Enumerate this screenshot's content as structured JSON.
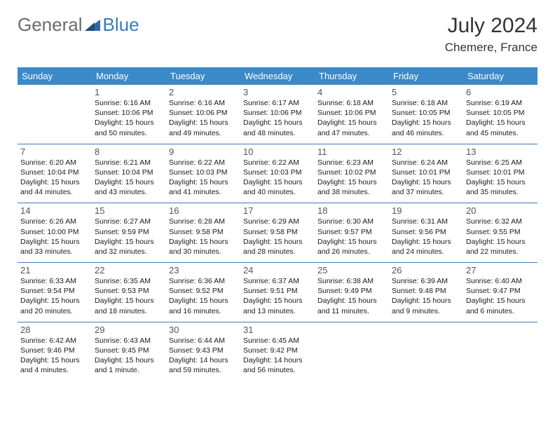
{
  "brand": {
    "part1": "General",
    "part2": "Blue",
    "tri_color": "#2f6aa8"
  },
  "title": "July 2024",
  "location": "Chemere, France",
  "colors": {
    "header_bg": "#3a8ac9",
    "header_text": "#ffffff",
    "row_border": "#3a7bbf",
    "text": "#1a1a1a",
    "daynum": "#555555",
    "page_bg": "#ffffff"
  },
  "fonts": {
    "title_size": 30,
    "location_size": 17,
    "th_size": 13,
    "daynum_size": 13,
    "cell_size": 10.5
  },
  "day_headers": [
    "Sunday",
    "Monday",
    "Tuesday",
    "Wednesday",
    "Thursday",
    "Friday",
    "Saturday"
  ],
  "weeks": [
    [
      {
        "n": "",
        "lines": []
      },
      {
        "n": "1",
        "lines": [
          "Sunrise: 6:16 AM",
          "Sunset: 10:06 PM",
          "Daylight: 15 hours and 50 minutes."
        ]
      },
      {
        "n": "2",
        "lines": [
          "Sunrise: 6:16 AM",
          "Sunset: 10:06 PM",
          "Daylight: 15 hours and 49 minutes."
        ]
      },
      {
        "n": "3",
        "lines": [
          "Sunrise: 6:17 AM",
          "Sunset: 10:06 PM",
          "Daylight: 15 hours and 48 minutes."
        ]
      },
      {
        "n": "4",
        "lines": [
          "Sunrise: 6:18 AM",
          "Sunset: 10:06 PM",
          "Daylight: 15 hours and 47 minutes."
        ]
      },
      {
        "n": "5",
        "lines": [
          "Sunrise: 6:18 AM",
          "Sunset: 10:05 PM",
          "Daylight: 15 hours and 46 minutes."
        ]
      },
      {
        "n": "6",
        "lines": [
          "Sunrise: 6:19 AM",
          "Sunset: 10:05 PM",
          "Daylight: 15 hours and 45 minutes."
        ]
      }
    ],
    [
      {
        "n": "7",
        "lines": [
          "Sunrise: 6:20 AM",
          "Sunset: 10:04 PM",
          "Daylight: 15 hours and 44 minutes."
        ]
      },
      {
        "n": "8",
        "lines": [
          "Sunrise: 6:21 AM",
          "Sunset: 10:04 PM",
          "Daylight: 15 hours and 43 minutes."
        ]
      },
      {
        "n": "9",
        "lines": [
          "Sunrise: 6:22 AM",
          "Sunset: 10:03 PM",
          "Daylight: 15 hours and 41 minutes."
        ]
      },
      {
        "n": "10",
        "lines": [
          "Sunrise: 6:22 AM",
          "Sunset: 10:03 PM",
          "Daylight: 15 hours and 40 minutes."
        ]
      },
      {
        "n": "11",
        "lines": [
          "Sunrise: 6:23 AM",
          "Sunset: 10:02 PM",
          "Daylight: 15 hours and 38 minutes."
        ]
      },
      {
        "n": "12",
        "lines": [
          "Sunrise: 6:24 AM",
          "Sunset: 10:01 PM",
          "Daylight: 15 hours and 37 minutes."
        ]
      },
      {
        "n": "13",
        "lines": [
          "Sunrise: 6:25 AM",
          "Sunset: 10:01 PM",
          "Daylight: 15 hours and 35 minutes."
        ]
      }
    ],
    [
      {
        "n": "14",
        "lines": [
          "Sunrise: 6:26 AM",
          "Sunset: 10:00 PM",
          "Daylight: 15 hours and 33 minutes."
        ]
      },
      {
        "n": "15",
        "lines": [
          "Sunrise: 6:27 AM",
          "Sunset: 9:59 PM",
          "Daylight: 15 hours and 32 minutes."
        ]
      },
      {
        "n": "16",
        "lines": [
          "Sunrise: 6:28 AM",
          "Sunset: 9:58 PM",
          "Daylight: 15 hours and 30 minutes."
        ]
      },
      {
        "n": "17",
        "lines": [
          "Sunrise: 6:29 AM",
          "Sunset: 9:58 PM",
          "Daylight: 15 hours and 28 minutes."
        ]
      },
      {
        "n": "18",
        "lines": [
          "Sunrise: 6:30 AM",
          "Sunset: 9:57 PM",
          "Daylight: 15 hours and 26 minutes."
        ]
      },
      {
        "n": "19",
        "lines": [
          "Sunrise: 6:31 AM",
          "Sunset: 9:56 PM",
          "Daylight: 15 hours and 24 minutes."
        ]
      },
      {
        "n": "20",
        "lines": [
          "Sunrise: 6:32 AM",
          "Sunset: 9:55 PM",
          "Daylight: 15 hours and 22 minutes."
        ]
      }
    ],
    [
      {
        "n": "21",
        "lines": [
          "Sunrise: 6:33 AM",
          "Sunset: 9:54 PM",
          "Daylight: 15 hours and 20 minutes."
        ]
      },
      {
        "n": "22",
        "lines": [
          "Sunrise: 6:35 AM",
          "Sunset: 9:53 PM",
          "Daylight: 15 hours and 18 minutes."
        ]
      },
      {
        "n": "23",
        "lines": [
          "Sunrise: 6:36 AM",
          "Sunset: 9:52 PM",
          "Daylight: 15 hours and 16 minutes."
        ]
      },
      {
        "n": "24",
        "lines": [
          "Sunrise: 6:37 AM",
          "Sunset: 9:51 PM",
          "Daylight: 15 hours and 13 minutes."
        ]
      },
      {
        "n": "25",
        "lines": [
          "Sunrise: 6:38 AM",
          "Sunset: 9:49 PM",
          "Daylight: 15 hours and 11 minutes."
        ]
      },
      {
        "n": "26",
        "lines": [
          "Sunrise: 6:39 AM",
          "Sunset: 9:48 PM",
          "Daylight: 15 hours and 9 minutes."
        ]
      },
      {
        "n": "27",
        "lines": [
          "Sunrise: 6:40 AM",
          "Sunset: 9:47 PM",
          "Daylight: 15 hours and 6 minutes."
        ]
      }
    ],
    [
      {
        "n": "28",
        "lines": [
          "Sunrise: 6:42 AM",
          "Sunset: 9:46 PM",
          "Daylight: 15 hours and 4 minutes."
        ]
      },
      {
        "n": "29",
        "lines": [
          "Sunrise: 6:43 AM",
          "Sunset: 9:45 PM",
          "Daylight: 15 hours and 1 minute."
        ]
      },
      {
        "n": "30",
        "lines": [
          "Sunrise: 6:44 AM",
          "Sunset: 9:43 PM",
          "Daylight: 14 hours and 59 minutes."
        ]
      },
      {
        "n": "31",
        "lines": [
          "Sunrise: 6:45 AM",
          "Sunset: 9:42 PM",
          "Daylight: 14 hours and 56 minutes."
        ]
      },
      {
        "n": "",
        "lines": []
      },
      {
        "n": "",
        "lines": []
      },
      {
        "n": "",
        "lines": []
      }
    ]
  ]
}
